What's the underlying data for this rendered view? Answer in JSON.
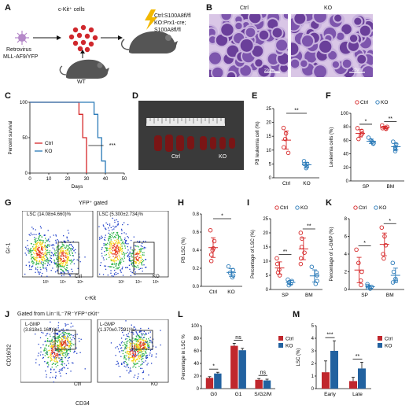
{
  "panels": {
    "A": {
      "letter": "A",
      "ckit_label": "c-Kit⁺ cells",
      "retro_label": "Retrovirus",
      "mllaf9_label": "MLL-AF9/YFP",
      "wt_label": "WT",
      "genotype_lines": [
        "Ctrl:S100A8fl/fl",
        "KO:Prx1-cre;",
        "S100A8fl/fl"
      ]
    },
    "B": {
      "letter": "B",
      "ctrl": "Ctrl",
      "ko": "KO",
      "scale1": "20μm",
      "scale2": "20μm"
    },
    "C": {
      "letter": "C"
    },
    "D": {
      "letter": "D",
      "ctrl": "Ctrl",
      "ko": "KO"
    },
    "E": {
      "letter": "E"
    },
    "F": {
      "letter": "F"
    },
    "G": {
      "letter": "G",
      "gate_title": "YFP⁺ gated",
      "lsc_ctrl": "LSC (14.08±4.660)%",
      "lsc_ko": "LSC (5.300±2.734)%",
      "tag_ctrl": "Ctrl",
      "tag_ko": "KO",
      "ylabel": "Gr-1",
      "xlabel": "c-Kit"
    },
    "H": {
      "letter": "H"
    },
    "I": {
      "letter": "I"
    },
    "J": {
      "letter": "J",
      "gate_title": "Gated from Lin⁻IL⁻7R⁻YFP⁺cKit⁺",
      "lgmp_ctrl_a": "L-GMP",
      "lgmp_ctrl_b": "(3.818±1.168)%",
      "lgmp_ko_a": "L-GMP",
      "lgmp_ko_b": "(1.370±0.7291)%",
      "tag_ctrl": "Ctrl",
      "tag_ko": "KO",
      "ylabel": "CD16/32",
      "xlabel": "CD34"
    },
    "K": {
      "letter": "K"
    },
    "L": {
      "letter": "L"
    },
    "M": {
      "letter": "M"
    }
  },
  "colors": {
    "ctrl": "#d62728",
    "ko": "#2a7ab8",
    "ctrl_bar": "#c0272d",
    "ko_bar": "#2262a0"
  },
  "chart_data": [
    {
      "id": "C",
      "type": "line",
      "ylabel": "Percent survival",
      "xlabel": "Days",
      "xlim": [
        0,
        50
      ],
      "ylim": [
        0,
        100
      ],
      "xticks": [
        0,
        10,
        20,
        30,
        40,
        50
      ],
      "yticks": [
        0,
        50,
        100
      ],
      "series": [
        {
          "name": "Ctrl",
          "steps": [
            [
              0,
              100
            ],
            [
              26,
              100
            ],
            [
              26,
              83
            ],
            [
              28,
              83
            ],
            [
              28,
              50
            ],
            [
              30,
              50
            ],
            [
              30,
              0
            ]
          ]
        },
        {
          "name": "KO",
          "steps": [
            [
              0,
              100
            ],
            [
              34,
              100
            ],
            [
              34,
              83
            ],
            [
              36,
              83
            ],
            [
              36,
              50
            ],
            [
              38,
              50
            ],
            [
              38,
              17
            ],
            [
              40,
              17
            ],
            [
              40,
              0
            ]
          ]
        }
      ],
      "significance": "***"
    },
    {
      "id": "E",
      "type": "scatter",
      "ylabel": "PB leukemia cell (%)",
      "ylim": [
        0,
        25
      ],
      "yticks": [
        0,
        5,
        10,
        15,
        20,
        25
      ],
      "categories": [
        "Ctrl",
        "KO"
      ],
      "series": [
        {
          "name": "Ctrl",
          "values": [
            18,
            16,
            14,
            11,
            9
          ],
          "mean": 13.6,
          "sd": 3.6
        },
        {
          "name": "KO",
          "values": [
            6,
            5,
            5,
            4,
            3.5
          ],
          "mean": 4.7,
          "sd": 1.0
        }
      ],
      "significance": "**"
    },
    {
      "id": "F",
      "type": "scatter",
      "ylabel": "Leukemia cells (%)",
      "ylim": [
        0,
        100
      ],
      "yticks": [
        0,
        20,
        40,
        60,
        80,
        100
      ],
      "categories": [
        "SP",
        "BM"
      ],
      "legend": [
        "Ctrl",
        "KO"
      ],
      "series": [
        {
          "name": "Ctrl",
          "SP": [
            78,
            74,
            70,
            68,
            62
          ],
          "BM": [
            82,
            80,
            78,
            78,
            77
          ]
        },
        {
          "name": "KO",
          "SP": [
            64,
            60,
            58,
            56,
            55
          ],
          "BM": [
            58,
            54,
            50,
            47,
            44
          ]
        }
      ],
      "significance": [
        "*",
        "**"
      ]
    },
    {
      "id": "H",
      "type": "scatter",
      "ylabel": "PB LSC (%)",
      "ylim": [
        0,
        0.8
      ],
      "yticks": [
        0.0,
        0.2,
        0.4,
        0.6,
        0.8
      ],
      "categories": [
        "Ctrl",
        "KO"
      ],
      "series": [
        {
          "name": "Ctrl",
          "values": [
            0.62,
            0.5,
            0.42,
            0.4,
            0.35,
            0.28
          ],
          "mean": 0.43,
          "sd": 0.12
        },
        {
          "name": "KO",
          "values": [
            0.22,
            0.18,
            0.15,
            0.12,
            0.1
          ],
          "mean": 0.15,
          "sd": 0.05
        }
      ],
      "significance": "*"
    },
    {
      "id": "I",
      "type": "scatter",
      "ylabel": "Percentage of LSC (%)",
      "ylim": [
        0,
        25
      ],
      "yticks": [
        0,
        5,
        10,
        15,
        20,
        25
      ],
      "categories": [
        "SP",
        "BM"
      ],
      "legend": [
        "Ctrl",
        "KO"
      ],
      "series": [
        {
          "name": "Ctrl",
          "SP": [
            11,
            9,
            7,
            6,
            5
          ],
          "BM": [
            20,
            18,
            15,
            13,
            11,
            9
          ]
        },
        {
          "name": "KO",
          "SP": [
            3.5,
            3,
            2.5,
            2,
            1.5
          ],
          "BM": [
            8,
            6,
            5,
            3,
            2
          ]
        }
      ],
      "significance": [
        "**",
        "**"
      ]
    },
    {
      "id": "K",
      "type": "scatter",
      "ylabel": "Percentage of L-GMP (%)",
      "ylim": [
        0,
        8
      ],
      "yticks": [
        0,
        2,
        4,
        6,
        8
      ],
      "categories": [
        "SP",
        "BM"
      ],
      "legend": [
        "Ctrl",
        "KO"
      ],
      "series": [
        {
          "name": "Ctrl",
          "SP": [
            4.5,
            3,
            2,
            1,
            0.5
          ],
          "BM": [
            7,
            6,
            5,
            4,
            3.5
          ]
        },
        {
          "name": "KO",
          "SP": [
            0.6,
            0.4,
            0.3,
            0.2,
            0.1
          ],
          "BM": [
            3,
            2,
            1.2,
            1,
            0.8
          ]
        }
      ],
      "significance": [
        "*",
        "*"
      ]
    },
    {
      "id": "L",
      "type": "bar",
      "ylabel": "Percentage in LSC %",
      "ylim": [
        0,
        100
      ],
      "yticks": [
        0,
        20,
        40,
        60,
        80,
        100
      ],
      "categories": [
        "G0",
        "G1",
        "S/G2/M"
      ],
      "legend": [
        "Ctrl",
        "KO"
      ],
      "series": [
        {
          "name": "Ctrl",
          "values": [
            17,
            68,
            14
          ],
          "err": [
            2,
            4,
            2
          ]
        },
        {
          "name": "KO",
          "values": [
            24,
            61,
            13
          ],
          "err": [
            2,
            3,
            2
          ]
        }
      ],
      "significance": [
        "*",
        "ns",
        "ns"
      ]
    },
    {
      "id": "M",
      "type": "bar",
      "ylabel": "LSC (%)",
      "ylim": [
        0,
        5
      ],
      "yticks": [
        0,
        1,
        2,
        3,
        4,
        5
      ],
      "categories": [
        "Early",
        "Late"
      ],
      "legend": [
        "Ctrl",
        "KO"
      ],
      "series": [
        {
          "name": "Ctrl",
          "values": [
            1.3,
            0.6
          ],
          "err": [
            0.9,
            0.3
          ]
        },
        {
          "name": "KO",
          "values": [
            3.0,
            1.6
          ],
          "err": [
            0.8,
            0.5
          ]
        }
      ],
      "significance": [
        "***",
        "**"
      ]
    }
  ]
}
